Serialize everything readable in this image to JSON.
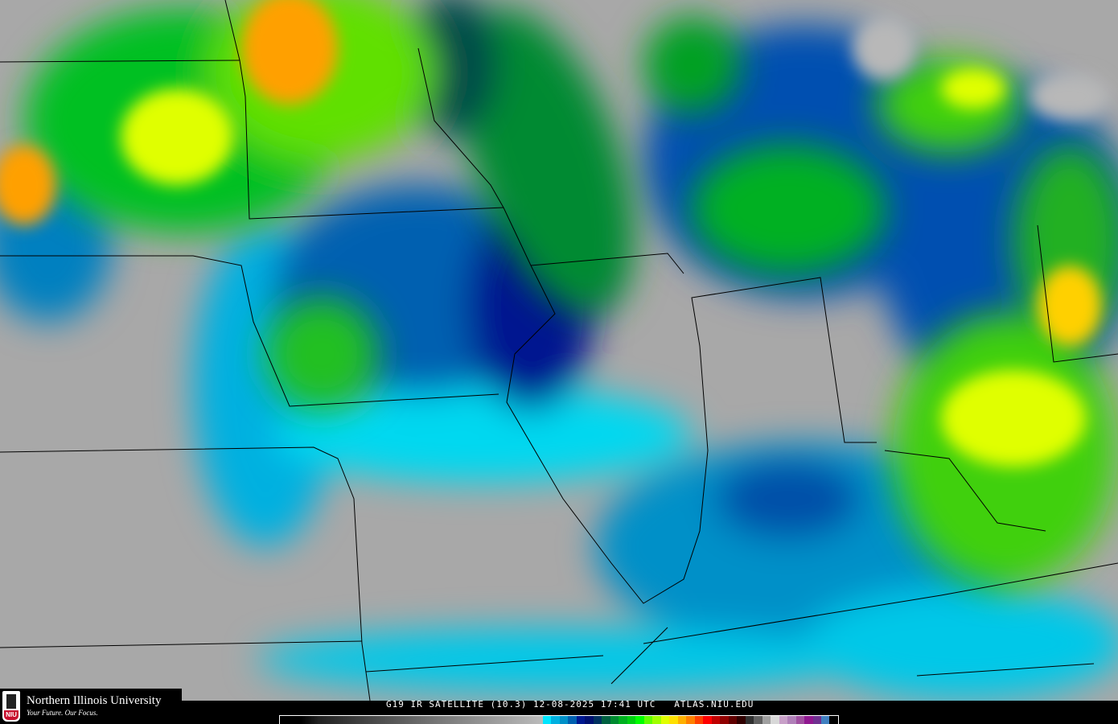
{
  "header": {
    "title": "G19 IR SATELLITE (10.3) 12-08-2025 17:41 UTC   ATLAS.NIU.EDU"
  },
  "logo": {
    "name": "Northern Illinois University",
    "tagline": "Your Future. Our Focus.",
    "badge": "NIU"
  },
  "map": {
    "type": "infrared satellite imagery",
    "region": "central United States",
    "base_color": "#a8a8a8"
  },
  "colorbar": {
    "gray_ramp": [
      "#000000",
      "#bbbbbb"
    ],
    "colors": [
      "#00e5ff",
      "#00b0e0",
      "#0090c8",
      "#0060b0",
      "#001890",
      "#001070",
      "#003060",
      "#006040",
      "#008a30",
      "#00b020",
      "#00d010",
      "#00ff00",
      "#60ff00",
      "#a0ff00",
      "#e0ff00",
      "#ffe000",
      "#ffb000",
      "#ff8000",
      "#ff4000",
      "#ff0000",
      "#c00000",
      "#900000",
      "#600000",
      "#300000",
      "#303030",
      "#606060",
      "#a0a0a0",
      "#d8d8d8",
      "#c8a0c8",
      "#b080b8",
      "#a050a0",
      "#901890",
      "#703090",
      "#4080c0",
      "#000000"
    ]
  }
}
